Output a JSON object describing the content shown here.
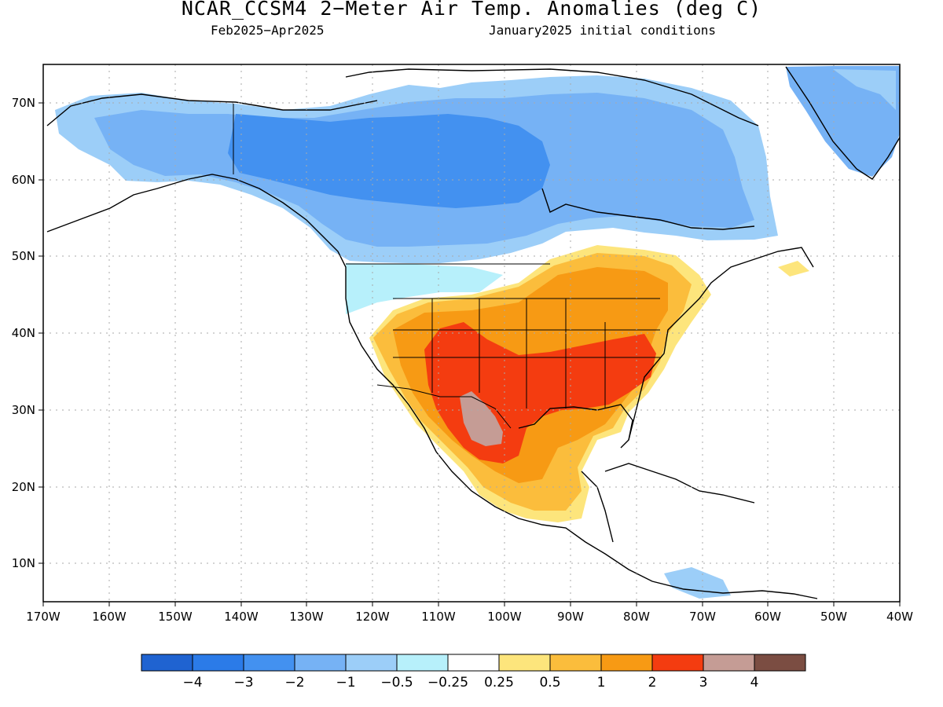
{
  "title": "NCAR_CCSM4 2−Meter Air Temp. Anomalies (deg C)",
  "subtitle_left": "Feb2025−Apr2025",
  "subtitle_right": "January2025 initial conditions",
  "lat_labels": [
    "70N",
    "60N",
    "50N",
    "40N",
    "30N",
    "20N",
    "10N"
  ],
  "lon_labels": [
    "170W",
    "160W",
    "150W",
    "140W",
    "130W",
    "120W",
    "110W",
    "100W",
    "90W",
    "80W",
    "70W",
    "60W",
    "50W",
    "40W"
  ],
  "colorbar": {
    "colors": [
      "#1f63d1",
      "#2b7be8",
      "#4391f0",
      "#76b2f5",
      "#9ccef8",
      "#b7f0fb",
      "#ffffff",
      "#fde57c",
      "#fbbd3c",
      "#f79a14",
      "#f43c10",
      "#c59c95",
      "#7b4d42"
    ],
    "labels": [
      "−4",
      "−3",
      "−2",
      "−1",
      "−0.5",
      "−0.25",
      "0.25",
      "0.5",
      "1",
      "2",
      "3",
      "4"
    ]
  },
  "map_data": {
    "projection": "cylindrical equidistant",
    "extent": {
      "lon": [
        -170,
        -40
      ],
      "lat": [
        5,
        75
      ]
    },
    "graticule_interval_deg": 10,
    "anomaly_regions": [
      {
        "region": "Alaska interior / Yukon",
        "anomaly_class": "-1 to -2"
      },
      {
        "region": "Northern Canada / Nunavut",
        "anomaly_class": "-2 to -3"
      },
      {
        "region": "Greenland",
        "anomaly_class": "-1 to -2"
      },
      {
        "region": "Northern Great Plains / Pacific NW",
        "anomaly_class": "-0.25 to -1"
      },
      {
        "region": "Great Lakes / Ohio Valley",
        "anomaly_class": "1 to 2"
      },
      {
        "region": "Southeast US / Texas",
        "anomaly_class": "2 to 3"
      },
      {
        "region": "Northern Mexico (Chihuahua)",
        "anomaly_class": "3 to 4"
      },
      {
        "region": "Central Mexico",
        "anomaly_class": "0.5 to 2"
      },
      {
        "region": "Caribbean (near Venezuela)",
        "anomaly_class": "-0.5 to -1"
      }
    ]
  }
}
